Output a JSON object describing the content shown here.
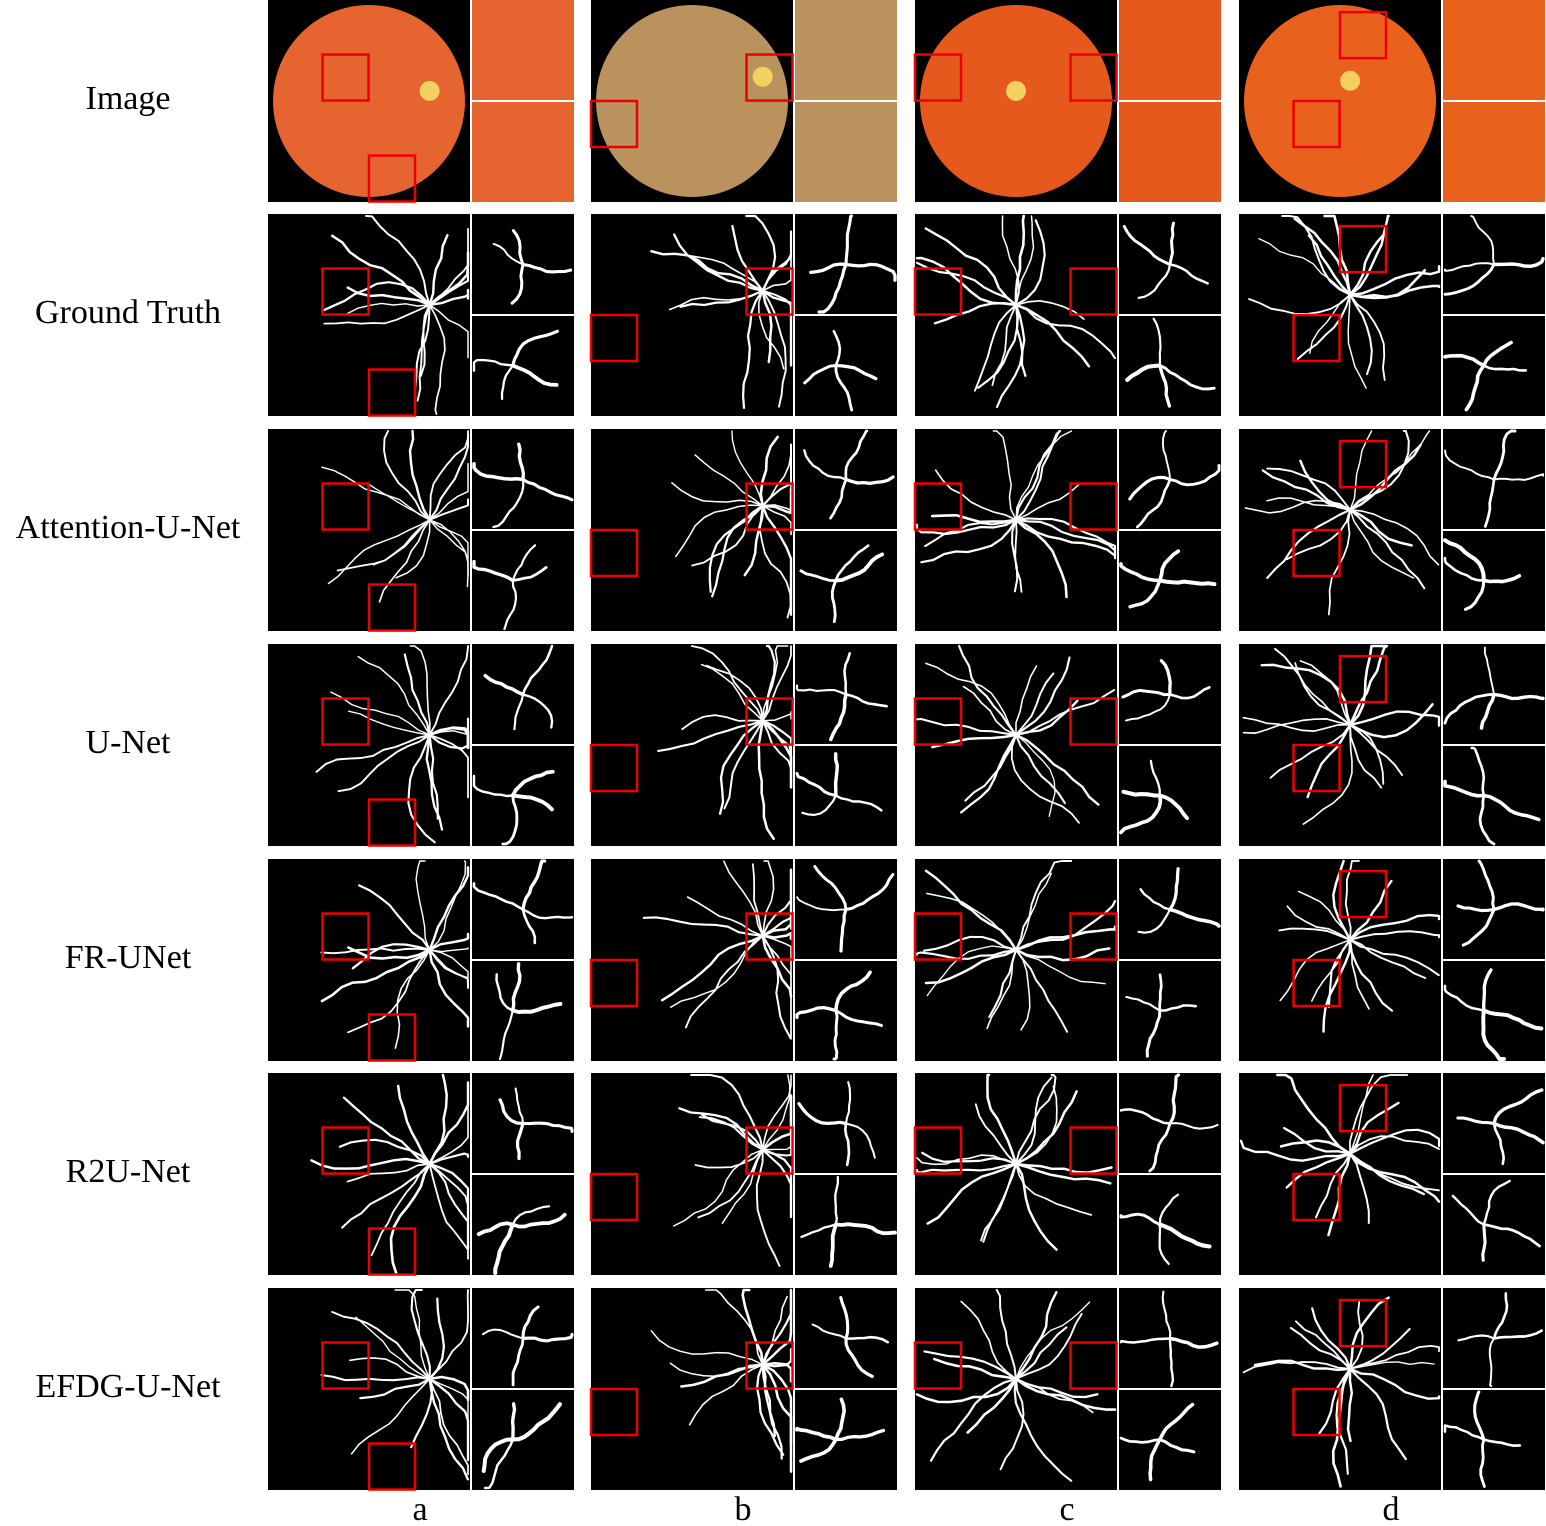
{
  "row_labels": [
    "Image",
    "Ground Truth",
    "Attention-U-Net",
    "U-Net",
    "FR-UNet",
    "R2U-Net",
    "EFDG-U-Net"
  ],
  "column_labels": [
    "a",
    "b",
    "c",
    "d"
  ]
}
